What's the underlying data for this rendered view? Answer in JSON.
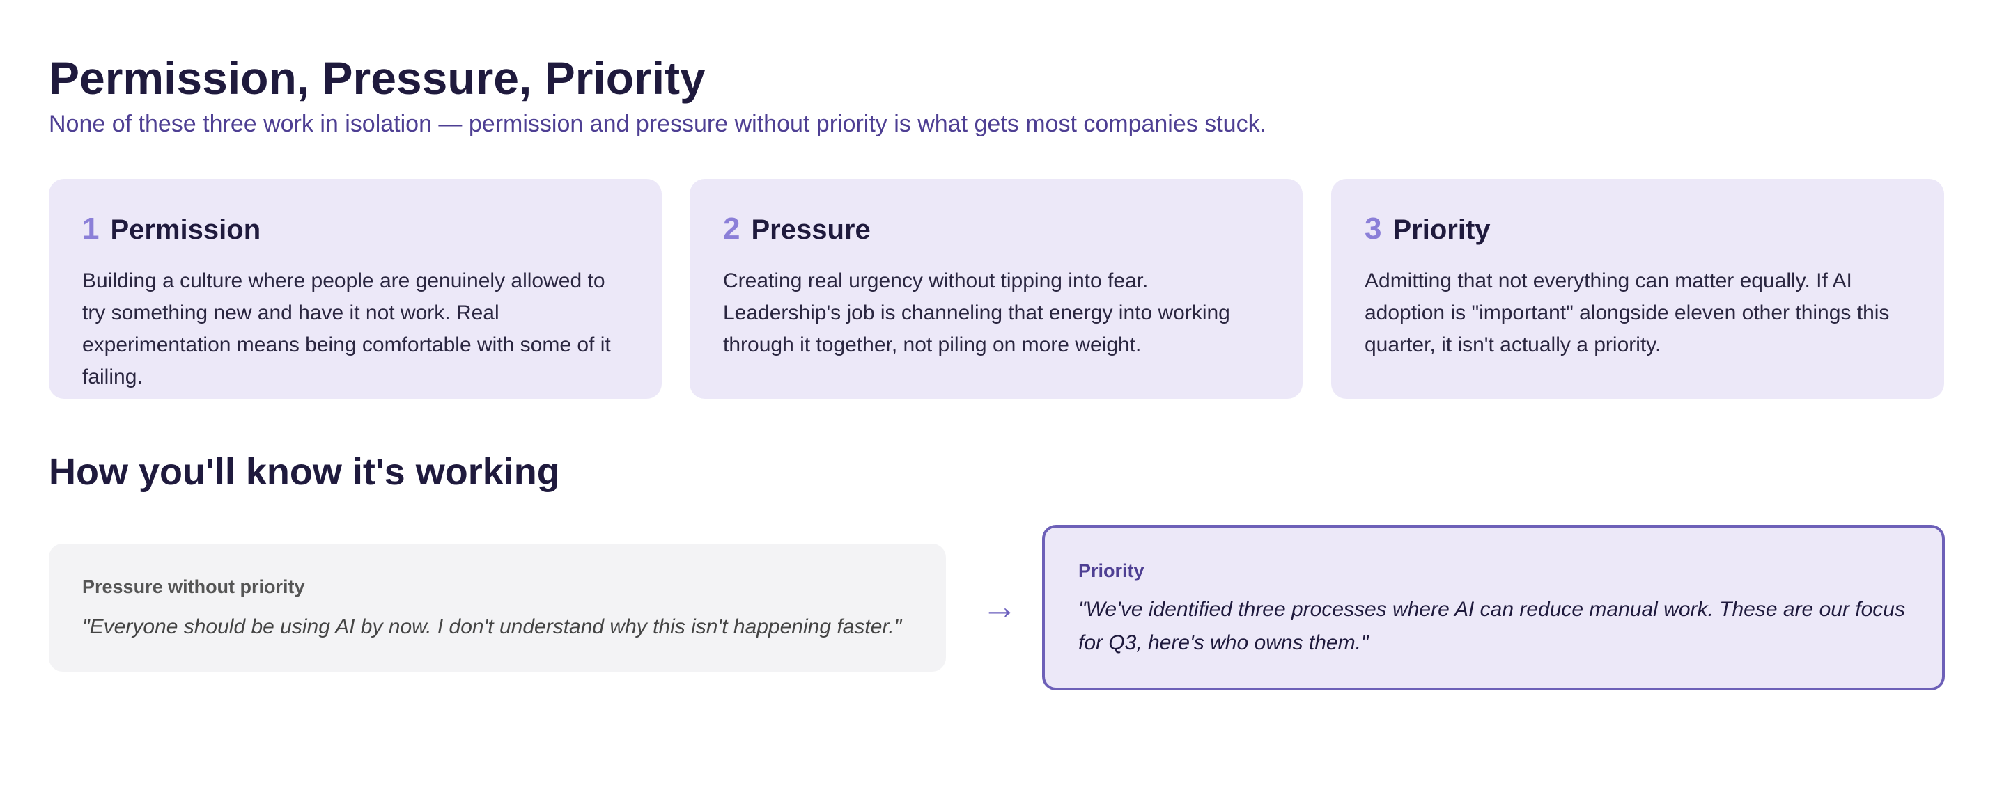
{
  "header": {
    "title": "Permission, Pressure, Priority",
    "subtitle": "None of these three work in isolation — permission and pressure without priority is what gets most companies stuck."
  },
  "cards": [
    {
      "number": "1",
      "title": "Permission",
      "body": "Building a culture where people are genuinely allowed to try something new and have it not work. Real experimentation means being comfortable with some of it failing."
    },
    {
      "number": "2",
      "title": "Pressure",
      "body": "Creating real urgency without tipping into fear. Leadership's job is channeling that energy into working through it together, not piling on more weight."
    },
    {
      "number": "3",
      "title": "Priority",
      "body": "Admitting that not everything can matter equally. If AI adoption is \"important\" alongside eleven other things this quarter, it isn't actually a priority."
    }
  ],
  "section": {
    "title": "How you'll know it's working"
  },
  "comparison": {
    "before": {
      "label": "Pressure without priority",
      "quote": "\"Everyone should be using AI by now. I don't understand why this isn't happening faster.\""
    },
    "arrow": "→",
    "after": {
      "label": "Priority",
      "quote": "\"We've identified three processes where AI can reduce manual work. These are our focus for Q3, here's who owns them.\""
    }
  },
  "colors": {
    "heading": "#1f1a3d",
    "accent": "#4e3f93",
    "number": "#8b7fd8",
    "card_bg": "#ece8f8",
    "muted_bg": "#f3f3f5",
    "border": "#6d60b8"
  }
}
